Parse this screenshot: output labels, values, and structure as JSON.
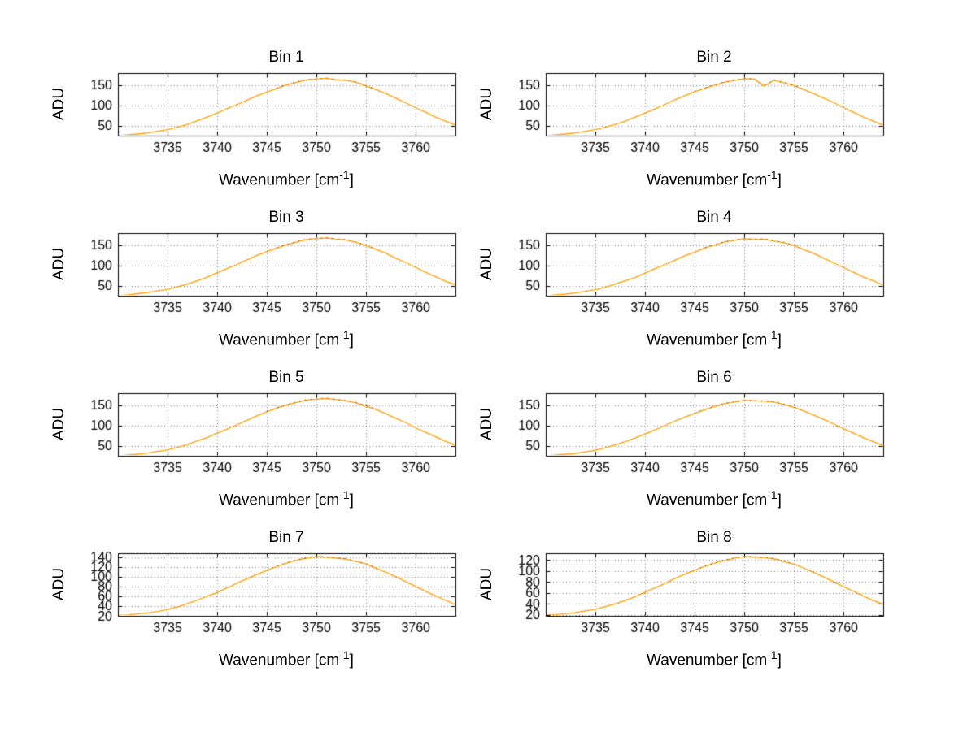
{
  "figure": {
    "background": "#ffffff",
    "line_color": "#ff9e00",
    "speck_color": "#5a2800",
    "axis_color": "#000000",
    "grid_color": "#7a7a7a"
  },
  "labels": {
    "ylabel": "ADU",
    "xlabel_pre": "Wavenumber [cm",
    "xlabel_sup": "-1",
    "xlabel_post": "]"
  },
  "chart_data": [
    {
      "type": "line",
      "title": "Bin 1",
      "xlabel": "Wavenumber [cm⁻¹]",
      "ylabel": "ADU",
      "grid": true,
      "xlim": [
        3730,
        3764
      ],
      "ylim": [
        25,
        180
      ],
      "xticks": [
        3735,
        3740,
        3745,
        3750,
        3755,
        3760
      ],
      "yticks": [
        50,
        100,
        150
      ],
      "x": [
        3730,
        3731,
        3732,
        3733,
        3734,
        3735,
        3736,
        3737,
        3738,
        3739,
        3740,
        3741,
        3742,
        3743,
        3744,
        3745,
        3746,
        3747,
        3748,
        3749,
        3750,
        3751,
        3752,
        3753,
        3754,
        3755,
        3756,
        3757,
        3758,
        3759,
        3760,
        3761,
        3762,
        3763,
        3764
      ],
      "y": [
        25,
        27,
        29,
        32,
        36,
        40,
        46,
        53,
        62,
        71,
        81,
        92,
        102,
        113,
        124,
        133,
        142,
        151,
        157,
        163,
        165,
        167,
        163,
        162,
        157,
        148,
        139,
        129,
        118,
        106,
        94,
        83,
        71,
        61,
        51
      ]
    },
    {
      "type": "line",
      "title": "Bin 2",
      "xlabel": "Wavenumber [cm⁻¹]",
      "ylabel": "ADU",
      "grid": true,
      "xlim": [
        3730,
        3764
      ],
      "ylim": [
        25,
        180
      ],
      "xticks": [
        3735,
        3740,
        3745,
        3750,
        3755,
        3760
      ],
      "yticks": [
        50,
        100,
        150
      ],
      "x": [
        3730,
        3731,
        3732,
        3733,
        3734,
        3735,
        3736,
        3737,
        3738,
        3739,
        3740,
        3741,
        3742,
        3743,
        3744,
        3745,
        3746,
        3747,
        3748,
        3749,
        3750,
        3751,
        3752,
        3753,
        3754,
        3755,
        3756,
        3757,
        3758,
        3759,
        3760,
        3761,
        3762,
        3763,
        3764
      ],
      "y": [
        25,
        27,
        29,
        32,
        36,
        40,
        46,
        53,
        61,
        71,
        81,
        91,
        102,
        114,
        124,
        134,
        142,
        150,
        157,
        162,
        166,
        165,
        148,
        162,
        156,
        149,
        139,
        129,
        118,
        107,
        94,
        83,
        71,
        61,
        51
      ]
    },
    {
      "type": "line",
      "title": "Bin 3",
      "xlabel": "Wavenumber [cm⁻¹]",
      "ylabel": "ADU",
      "grid": true,
      "xlim": [
        3730,
        3764
      ],
      "ylim": [
        25,
        180
      ],
      "xticks": [
        3735,
        3740,
        3745,
        3750,
        3755,
        3760
      ],
      "yticks": [
        50,
        100,
        150
      ],
      "x": [
        3730,
        3731,
        3732,
        3733,
        3734,
        3735,
        3736,
        3737,
        3738,
        3739,
        3740,
        3741,
        3742,
        3743,
        3744,
        3745,
        3746,
        3747,
        3748,
        3749,
        3750,
        3751,
        3752,
        3753,
        3754,
        3755,
        3756,
        3757,
        3758,
        3759,
        3760,
        3761,
        3762,
        3763,
        3764
      ],
      "y": [
        25,
        27,
        30,
        33,
        37,
        41,
        47,
        54,
        62,
        71,
        82,
        92,
        103,
        114,
        125,
        134,
        143,
        151,
        158,
        164,
        166,
        168,
        165,
        163,
        157,
        149,
        140,
        130,
        118,
        107,
        95,
        83,
        72,
        61,
        52
      ]
    },
    {
      "type": "line",
      "title": "Bin 4",
      "xlabel": "Wavenumber [cm⁻¹]",
      "ylabel": "ADU",
      "grid": true,
      "xlim": [
        3730,
        3764
      ],
      "ylim": [
        25,
        180
      ],
      "xticks": [
        3735,
        3740,
        3745,
        3750,
        3755,
        3760
      ],
      "yticks": [
        50,
        100,
        150
      ],
      "x": [
        3730,
        3731,
        3732,
        3733,
        3734,
        3735,
        3736,
        3737,
        3738,
        3739,
        3740,
        3741,
        3742,
        3743,
        3744,
        3745,
        3746,
        3747,
        3748,
        3749,
        3750,
        3751,
        3752,
        3753,
        3754,
        3755,
        3756,
        3757,
        3758,
        3759,
        3760,
        3761,
        3762,
        3763,
        3764
      ],
      "y": [
        25,
        27,
        29,
        32,
        36,
        40,
        46,
        54,
        62,
        70,
        81,
        92,
        102,
        113,
        124,
        133,
        143,
        150,
        158,
        162,
        166,
        164,
        165,
        160,
        156,
        149,
        139,
        130,
        118,
        106,
        95,
        83,
        71,
        62,
        51
      ]
    },
    {
      "type": "line",
      "title": "Bin 5",
      "xlabel": "Wavenumber [cm⁻¹]",
      "ylabel": "ADU",
      "grid": true,
      "xlim": [
        3730,
        3764
      ],
      "ylim": [
        25,
        180
      ],
      "xticks": [
        3735,
        3740,
        3745,
        3750,
        3755,
        3760
      ],
      "yticks": [
        50,
        100,
        150
      ],
      "x": [
        3730,
        3731,
        3732,
        3733,
        3734,
        3735,
        3736,
        3737,
        3738,
        3739,
        3740,
        3741,
        3742,
        3743,
        3744,
        3745,
        3746,
        3747,
        3748,
        3749,
        3750,
        3751,
        3752,
        3753,
        3754,
        3755,
        3756,
        3757,
        3758,
        3759,
        3760,
        3761,
        3762,
        3763,
        3764
      ],
      "y": [
        25,
        27,
        29,
        32,
        36,
        40,
        46,
        53,
        62,
        70,
        81,
        91,
        102,
        113,
        124,
        134,
        143,
        151,
        157,
        163,
        165,
        167,
        164,
        161,
        156,
        148,
        140,
        129,
        118,
        107,
        94,
        83,
        72,
        61,
        51
      ]
    },
    {
      "type": "line",
      "title": "Bin 6",
      "xlabel": "Wavenumber [cm⁻¹]",
      "ylabel": "ADU",
      "grid": true,
      "xlim": [
        3730,
        3764
      ],
      "ylim": [
        25,
        180
      ],
      "xticks": [
        3735,
        3740,
        3745,
        3750,
        3755,
        3760
      ],
      "yticks": [
        50,
        100,
        150
      ],
      "x": [
        3730,
        3731,
        3732,
        3733,
        3734,
        3735,
        3736,
        3737,
        3738,
        3739,
        3740,
        3741,
        3742,
        3743,
        3744,
        3745,
        3746,
        3747,
        3748,
        3749,
        3750,
        3751,
        3752,
        3753,
        3754,
        3755,
        3756,
        3757,
        3758,
        3759,
        3760,
        3761,
        3762,
        3763,
        3764
      ],
      "y": [
        25,
        27,
        29,
        31,
        35,
        39,
        45,
        52,
        60,
        69,
        79,
        89,
        100,
        111,
        121,
        130,
        139,
        147,
        154,
        158,
        162,
        161,
        160,
        158,
        152,
        145,
        136,
        126,
        115,
        104,
        92,
        81,
        70,
        60,
        50
      ]
    },
    {
      "type": "line",
      "title": "Bin 7",
      "xlabel": "Wavenumber [cm⁻¹]",
      "ylabel": "ADU",
      "grid": true,
      "xlim": [
        3730,
        3764
      ],
      "ylim": [
        20,
        148
      ],
      "xticks": [
        3735,
        3740,
        3745,
        3750,
        3755,
        3760
      ],
      "yticks": [
        20,
        40,
        60,
        80,
        100,
        120,
        140
      ],
      "x": [
        3730,
        3731,
        3732,
        3733,
        3734,
        3735,
        3736,
        3737,
        3738,
        3739,
        3740,
        3741,
        3742,
        3743,
        3744,
        3745,
        3746,
        3747,
        3748,
        3749,
        3750,
        3751,
        3752,
        3753,
        3754,
        3755,
        3756,
        3757,
        3758,
        3759,
        3760,
        3761,
        3762,
        3763,
        3764
      ],
      "y": [
        21,
        22,
        24,
        26,
        29,
        33,
        38,
        45,
        52,
        60,
        68,
        77,
        87,
        96,
        105,
        113,
        121,
        128,
        134,
        138,
        141,
        140,
        138,
        136,
        131,
        126,
        117,
        109,
        100,
        90,
        80,
        70,
        61,
        52,
        43
      ]
    },
    {
      "type": "line",
      "title": "Bin 8",
      "xlabel": "Wavenumber [cm⁻¹]",
      "ylabel": "ADU",
      "grid": true,
      "xlim": [
        3730,
        3764
      ],
      "ylim": [
        18,
        132
      ],
      "xticks": [
        3735,
        3740,
        3745,
        3750,
        3755,
        3760
      ],
      "yticks": [
        20,
        40,
        60,
        80,
        100,
        120
      ],
      "x": [
        3730,
        3731,
        3732,
        3733,
        3734,
        3735,
        3736,
        3737,
        3738,
        3739,
        3740,
        3741,
        3742,
        3743,
        3744,
        3745,
        3746,
        3747,
        3748,
        3749,
        3750,
        3751,
        3752,
        3753,
        3754,
        3755,
        3756,
        3757,
        3758,
        3759,
        3760,
        3761,
        3762,
        3763,
        3764
      ],
      "y": [
        19,
        20,
        22,
        24,
        27,
        30,
        35,
        40,
        46,
        53,
        61,
        69,
        77,
        86,
        94,
        101,
        108,
        114,
        119,
        123,
        126,
        125,
        124,
        122,
        117,
        112,
        105,
        97,
        89,
        80,
        71,
        63,
        54,
        46,
        39
      ]
    }
  ]
}
